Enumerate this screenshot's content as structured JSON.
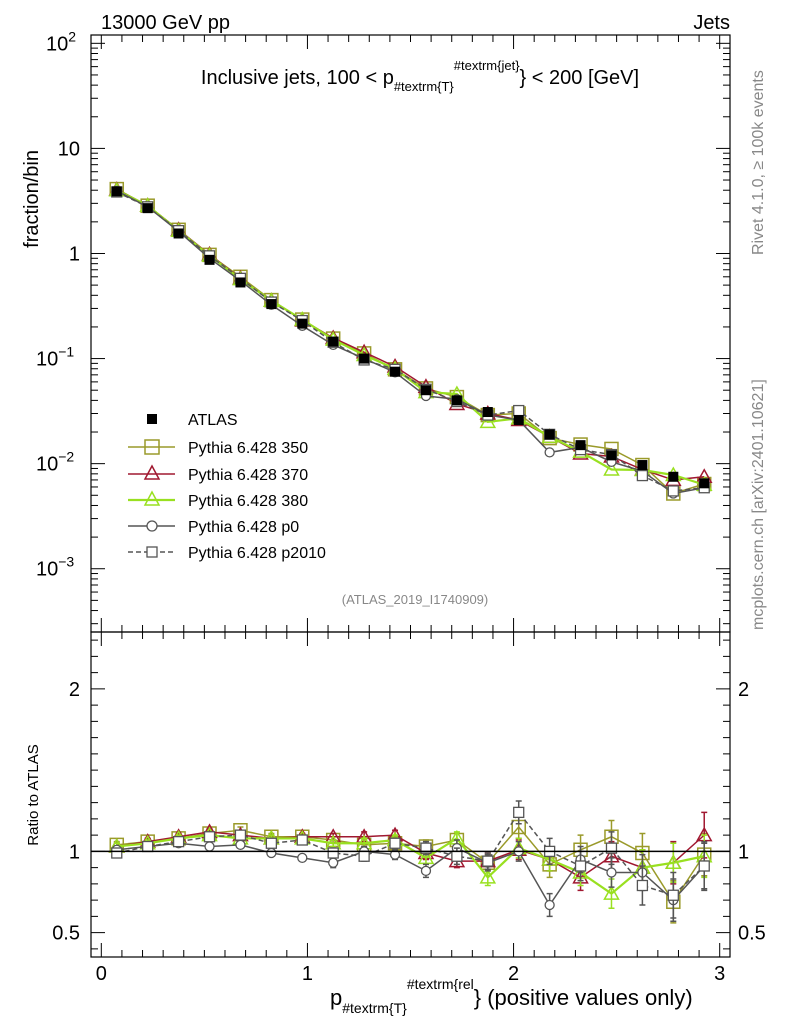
{
  "header": {
    "left": "13000 GeV pp",
    "right": "Jets"
  },
  "side_labels": {
    "top": "Rivet 4.1.0, ≥ 100k events",
    "bottom": "mcplots.cern.ch [arXiv:2401.10621]"
  },
  "chart_data": [
    {
      "type": "line",
      "title": "Inclusive jets, 100 < p_{#textrm{T}}^{#textrm{jet}} < 200 [GeV]",
      "title_parts": {
        "pre": "Inclusive jets, 100 < p",
        "sub": "#textrm{T}",
        "sup": "#textrm{jet}",
        "post": "} < 200 [GeV]"
      },
      "ylabel": "fraction/bin",
      "yscale": "log",
      "ylim": [
        0.00025,
        120
      ],
      "xlim": [
        -0.05,
        3.05
      ],
      "y_ticks": [
        {
          "value": 100,
          "base": "10",
          "exp": "2"
        },
        {
          "value": 10,
          "base": "10",
          "exp": ""
        },
        {
          "value": 1,
          "base": "1",
          "exp": ""
        },
        {
          "value": 0.1,
          "base": "10",
          "exp": "−1"
        },
        {
          "value": 0.01,
          "base": "10",
          "exp": "−2"
        },
        {
          "value": 0.001,
          "base": "10",
          "exp": "−3"
        }
      ],
      "watermark": "(ATLAS_2019_I1740909)",
      "legend_position": "lower-left",
      "x": [
        0.075,
        0.225,
        0.375,
        0.525,
        0.675,
        0.825,
        0.975,
        1.125,
        1.275,
        1.425,
        1.575,
        1.725,
        1.875,
        2.025,
        2.175,
        2.325,
        2.475,
        2.625,
        2.775,
        2.925
      ],
      "series": [
        {
          "name": "ATLAS",
          "color": "#000000",
          "marker": "filled-square",
          "line": "none",
          "values": [
            3.9,
            2.7,
            1.55,
            0.87,
            0.53,
            0.33,
            0.215,
            0.145,
            0.1,
            0.075,
            0.05,
            0.04,
            0.031,
            0.026,
            0.019,
            0.015,
            0.012,
            0.0097,
            0.0075,
            0.0065
          ]
        },
        {
          "name": "Pythia 6.428 350",
          "color": "#9a9a2a",
          "marker": "open-square",
          "line": "solid",
          "values": [
            4.1,
            2.85,
            1.68,
            0.97,
            0.6,
            0.36,
            0.235,
            0.155,
            0.112,
            0.079,
            0.052,
            0.043,
            0.029,
            0.03,
            0.0175,
            0.0152,
            0.0138,
            0.0097,
            0.0052,
            0.0064
          ]
        },
        {
          "name": "Pythia 6.428 370",
          "color": "#a01830",
          "marker": "open-triangle",
          "line": "solid",
          "values": [
            4.05,
            2.85,
            1.68,
            0.98,
            0.58,
            0.355,
            0.232,
            0.157,
            0.115,
            0.084,
            0.054,
            0.037,
            0.03,
            0.026,
            0.018,
            0.0125,
            0.0117,
            0.0088,
            0.007,
            0.0075
          ]
        },
        {
          "name": "Pythia 6.428 380",
          "color": "#99e020",
          "marker": "open-triangle",
          "line": "solid",
          "values": [
            4.0,
            2.85,
            1.65,
            0.96,
            0.57,
            0.355,
            0.235,
            0.152,
            0.108,
            0.08,
            0.048,
            0.046,
            0.025,
            0.027,
            0.018,
            0.013,
            0.0088,
            0.0087,
            0.0078,
            0.0063
          ]
        },
        {
          "name": "Pythia 6.428 p0",
          "color": "#555555",
          "marker": "open-circle",
          "line": "solid",
          "values": [
            3.95,
            2.78,
            1.62,
            0.9,
            0.55,
            0.325,
            0.205,
            0.135,
            0.1,
            0.074,
            0.044,
            0.041,
            0.029,
            0.026,
            0.0128,
            0.0143,
            0.0104,
            0.0085,
            0.0052,
            0.0059
          ]
        },
        {
          "name": "Pythia 6.428 p2010",
          "color": "#555555",
          "marker": "open-square",
          "line": "dashed",
          "values": [
            3.85,
            2.78,
            1.65,
            0.95,
            0.58,
            0.345,
            0.23,
            0.143,
            0.097,
            0.079,
            0.051,
            0.039,
            0.029,
            0.032,
            0.019,
            0.0136,
            0.0122,
            0.0077,
            0.0055,
            0.0059
          ]
        }
      ]
    },
    {
      "type": "line",
      "title": "",
      "ylabel": "Ratio to ATLAS",
      "xlabel": "p_{#textrm{T}}^{#textrm{rel}} (positive values only)",
      "xlabel_parts": {
        "pre": "p",
        "sub": "#textrm{T}",
        "sup": "#textrm{rel",
        "post": "} (positive values only)"
      },
      "ylim": [
        0.35,
        2.35
      ],
      "xlim": [
        -0.05,
        3.05
      ],
      "x_ticks": [
        0,
        1,
        2,
        3
      ],
      "x_tick_labels": [
        "0",
        "1",
        "2",
        "3"
      ],
      "y_ticks": [
        0.5,
        1,
        2
      ],
      "y_tick_labels": [
        "0.5",
        "1",
        "2"
      ],
      "reference_line": 1,
      "x": [
        0.075,
        0.225,
        0.375,
        0.525,
        0.675,
        0.825,
        0.975,
        1.125,
        1.275,
        1.425,
        1.575,
        1.725,
        1.875,
        2.025,
        2.175,
        2.325,
        2.475,
        2.625,
        2.775,
        2.925
      ],
      "series": [
        {
          "name": "Pythia 6.428 350",
          "color": "#9a9a2a",
          "values": [
            1.04,
            1.06,
            1.08,
            1.11,
            1.13,
            1.09,
            1.09,
            1.07,
            1.04,
            1.05,
            1.03,
            1.07,
            0.93,
            1.15,
            0.92,
            1.01,
            1.09,
            0.99,
            0.69,
            0.98
          ],
          "errors": [
            0.02,
            0.02,
            0.02,
            0.02,
            0.02,
            0.02,
            0.02,
            0.02,
            0.03,
            0.03,
            0.04,
            0.04,
            0.05,
            0.07,
            0.08,
            0.09,
            0.1,
            0.12,
            0.13,
            0.13
          ]
        },
        {
          "name": "Pythia 6.428 370",
          "color": "#a01830",
          "values": [
            1.03,
            1.06,
            1.09,
            1.12,
            1.1,
            1.08,
            1.09,
            1.09,
            1.09,
            1.1,
            0.99,
            0.94,
            0.94,
            1.01,
            0.95,
            0.84,
            0.97,
            0.9,
            0.93,
            1.1
          ],
          "errors": [
            0.02,
            0.02,
            0.02,
            0.02,
            0.02,
            0.02,
            0.02,
            0.02,
            0.03,
            0.03,
            0.04,
            0.04,
            0.05,
            0.06,
            0.07,
            0.08,
            0.09,
            0.11,
            0.13,
            0.14
          ]
        },
        {
          "name": "Pythia 6.428 380",
          "color": "#99e020",
          "values": [
            1.03,
            1.05,
            1.08,
            1.1,
            1.08,
            1.08,
            1.08,
            1.05,
            1.05,
            1.07,
            0.96,
            1.08,
            0.84,
            1.02,
            0.95,
            0.87,
            0.74,
            0.9,
            0.93,
            0.97
          ],
          "errors": [
            0.02,
            0.02,
            0.02,
            0.02,
            0.02,
            0.02,
            0.02,
            0.02,
            0.03,
            0.03,
            0.04,
            0.04,
            0.05,
            0.06,
            0.07,
            0.08,
            0.09,
            0.11,
            0.12,
            0.13
          ]
        },
        {
          "name": "Pythia 6.428 p0",
          "color": "#555555",
          "values": [
            1.01,
            1.03,
            1.05,
            1.03,
            1.04,
            0.99,
            0.96,
            0.93,
            1.0,
            0.98,
            0.88,
            1.02,
            0.93,
            1.0,
            0.67,
            0.95,
            0.87,
            0.87,
            0.7,
            0.91
          ],
          "errors": [
            0.02,
            0.02,
            0.02,
            0.02,
            0.02,
            0.02,
            0.02,
            0.03,
            0.03,
            0.03,
            0.04,
            0.05,
            0.05,
            0.06,
            0.07,
            0.08,
            0.09,
            0.11,
            0.13,
            0.14
          ]
        },
        {
          "name": "Pythia 6.428 p2010",
          "color": "#555555",
          "values": [
            0.99,
            1.03,
            1.06,
            1.09,
            1.1,
            1.05,
            1.07,
            0.99,
            0.97,
            1.05,
            1.02,
            0.97,
            0.94,
            1.24,
            1.0,
            0.91,
            1.02,
            0.79,
            0.73,
            0.91
          ],
          "errors": [
            0.02,
            0.02,
            0.02,
            0.02,
            0.02,
            0.02,
            0.02,
            0.03,
            0.03,
            0.03,
            0.04,
            0.05,
            0.05,
            0.07,
            0.08,
            0.09,
            0.1,
            0.12,
            0.14,
            0.15
          ]
        }
      ]
    }
  ]
}
